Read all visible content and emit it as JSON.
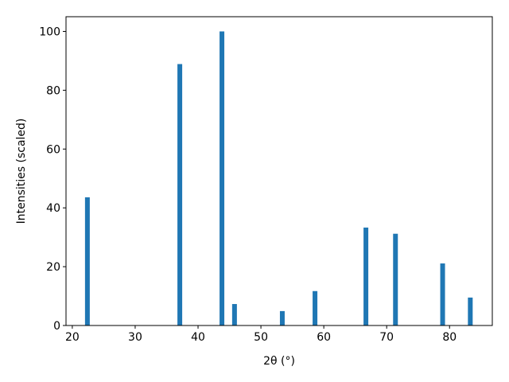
{
  "chart_data": {
    "type": "bar",
    "x_label": "2θ (°)",
    "y_label": "Intensities (scaled)",
    "x": [
      22.4,
      37.1,
      43.8,
      45.8,
      53.4,
      58.6,
      66.7,
      71.4,
      78.9,
      83.3
    ],
    "values": [
      43.6,
      88.9,
      100,
      7.3,
      4.9,
      11.7,
      33.3,
      31.2,
      21.1,
      9.5
    ],
    "color": "#1f77b4",
    "xlim": [
      19,
      86.8
    ],
    "xticks": [
      20,
      30,
      40,
      50,
      60,
      70,
      80
    ],
    "ylim": [
      0,
      105
    ],
    "yticks": [
      0,
      20,
      40,
      60,
      80,
      100
    ]
  }
}
